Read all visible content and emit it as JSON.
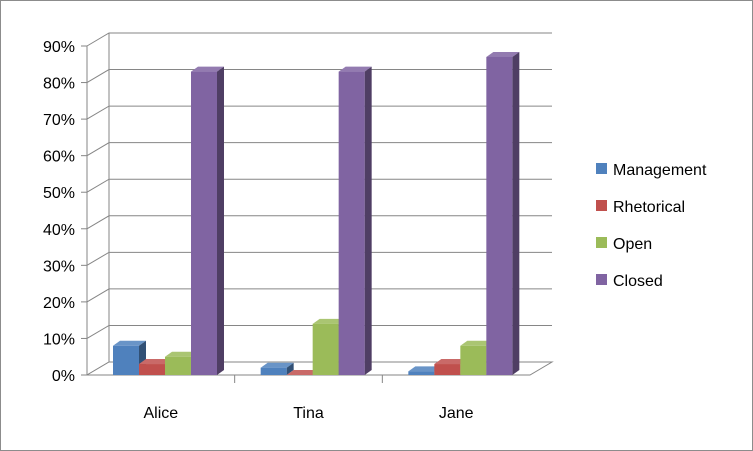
{
  "chart_data": {
    "type": "bar",
    "title": "",
    "xlabel": "",
    "ylabel": "",
    "categories": [
      "Alice",
      "Tina",
      "Jane"
    ],
    "ylim": [
      0,
      90
    ],
    "y_ticks": [
      "0%",
      "10%",
      "20%",
      "30%",
      "40%",
      "50%",
      "60%",
      "70%",
      "80%",
      "90%"
    ],
    "y_unit": "%",
    "grid": true,
    "three_d": true,
    "legend_position": "right",
    "series": [
      {
        "name": "Management",
        "color": "#4f81bd",
        "values": [
          8,
          2,
          1
        ]
      },
      {
        "name": "Rhetorical",
        "color": "#c0504d",
        "values": [
          3,
          0,
          3
        ]
      },
      {
        "name": "Open",
        "color": "#9bbb59",
        "values": [
          5,
          14,
          8
        ]
      },
      {
        "name": "Closed",
        "color": "#8064a2",
        "values": [
          83,
          83,
          87
        ]
      }
    ]
  }
}
